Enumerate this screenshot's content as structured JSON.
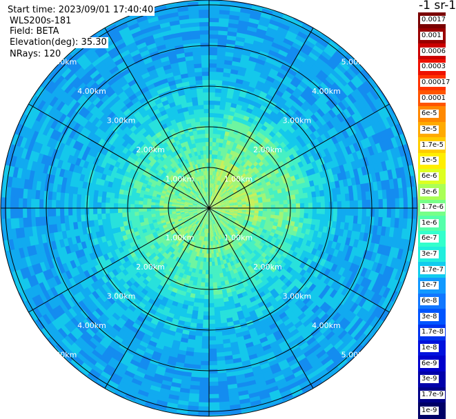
{
  "header": {
    "start_time": "Start time: 2023/09/01 17:40:40",
    "instrument": "WLS200s-181",
    "field": "Field: BETA",
    "elevation": "Elevation(deg): 35.30",
    "nrays": "NRays: 120"
  },
  "ppi": {
    "ring_labels": [
      "1.00km",
      "2.00km",
      "3.00km",
      "4.00km",
      "5.00km"
    ],
    "spokes": 12,
    "rays": 120
  },
  "colorbar": {
    "title": "-1 sr-1",
    "labels": [
      "0.0017",
      "0.001",
      "0.0006",
      "0.0003",
      "0.00017",
      "0.0001",
      "6e-5",
      "3e-5",
      "1.7e-5",
      "1e-5",
      "6e-6",
      "3e-6",
      "1.7e-6",
      "1e-6",
      "6e-7",
      "3e-7",
      "1.7e-7",
      "1e-7",
      "6e-8",
      "3e-8",
      "1.7e-8",
      "1e-8",
      "6e-9",
      "3e-9",
      "1.7e-9",
      "1e-9"
    ],
    "colors": [
      "#7a0000",
      "#990000",
      "#cc0000",
      "#ee1100",
      "#ff3300",
      "#ff5500",
      "#ff8800",
      "#ffaa00",
      "#ffcc00",
      "#ffee00",
      "#ddff22",
      "#aaff55",
      "#77ff88",
      "#55ffaa",
      "#33ffcc",
      "#22eedd",
      "#11ccee",
      "#1199ff",
      "#1177ff",
      "#0055ff",
      "#0033ee",
      "#0011dd",
      "#0000cc",
      "#0000aa",
      "#000088",
      "#000066"
    ]
  }
}
